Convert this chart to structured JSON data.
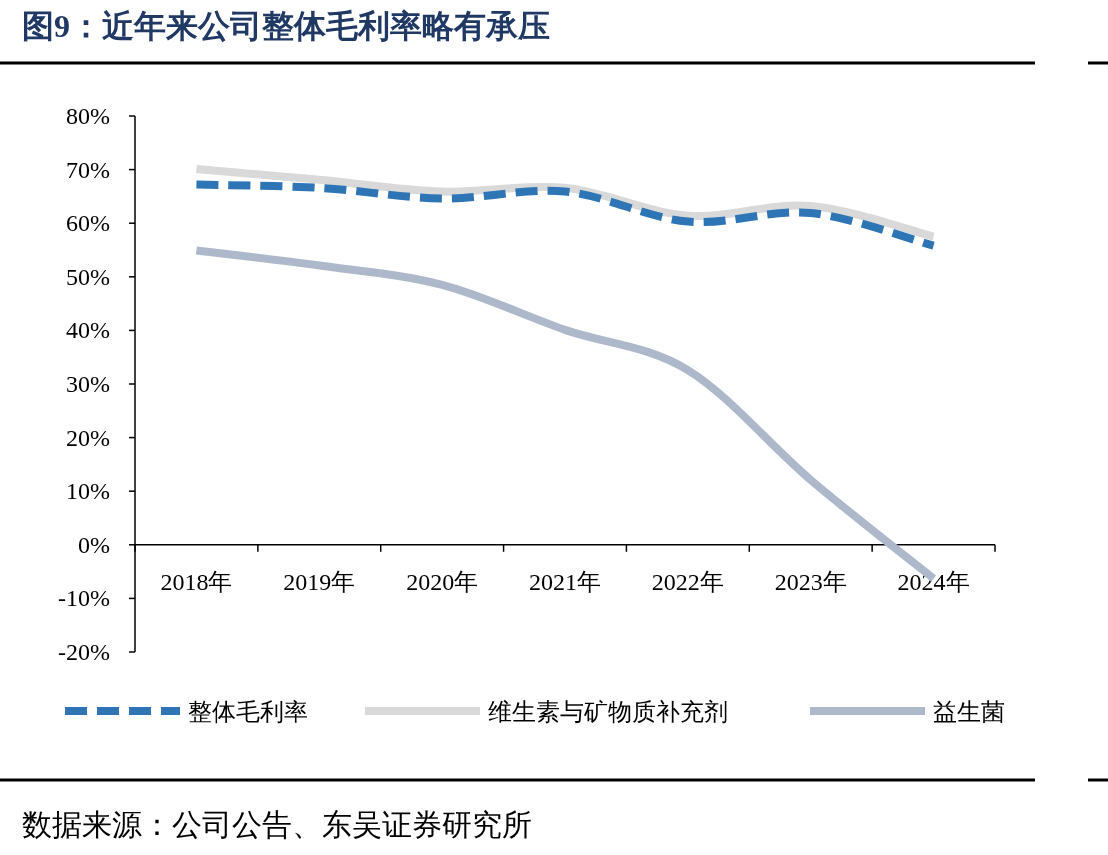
{
  "chart_data": {
    "type": "line",
    "title": "图9：近年来公司整体毛利率略有承压",
    "categories": [
      "2018年",
      "2019年",
      "2020年",
      "2021年",
      "2022年",
      "2023年",
      "2024年"
    ],
    "series": [
      {
        "name": "整体毛利率",
        "color": "#2e75b6",
        "line_style": "dashed",
        "values": [
          67.2,
          66.6,
          64.6,
          65.9,
          60.3,
          61.9,
          55.8
        ]
      },
      {
        "name": "维生素与矿物质补充剂",
        "color": "#d9d9d9",
        "line_style": "solid",
        "values": [
          70.1,
          68.1,
          65.9,
          66.6,
          61.4,
          63.2,
          57.5
        ]
      },
      {
        "name": "益生菌",
        "color": "#adb9ca",
        "line_style": "solid",
        "values": [
          54.9,
          52.1,
          48.5,
          40.1,
          32.6,
          12.1,
          -6.3
        ]
      }
    ],
    "ylim": [
      -20,
      80
    ],
    "yticks": [
      {
        "value": -20,
        "label": "-20%"
      },
      {
        "value": -10,
        "label": "-10%"
      },
      {
        "value": 0,
        "label": "0%"
      },
      {
        "value": 10,
        "label": "10%"
      },
      {
        "value": 20,
        "label": "20%"
      },
      {
        "value": 30,
        "label": "30%"
      },
      {
        "value": 40,
        "label": "40%"
      },
      {
        "value": 50,
        "label": "50%"
      },
      {
        "value": 60,
        "label": "60%"
      },
      {
        "value": 70,
        "label": "70%"
      },
      {
        "value": 80,
        "label": "80%"
      }
    ],
    "grid": false,
    "legend": "bottom",
    "marker": "none",
    "annotations": [
      "数据来源：公司公告、东吴证券研究所"
    ]
  }
}
